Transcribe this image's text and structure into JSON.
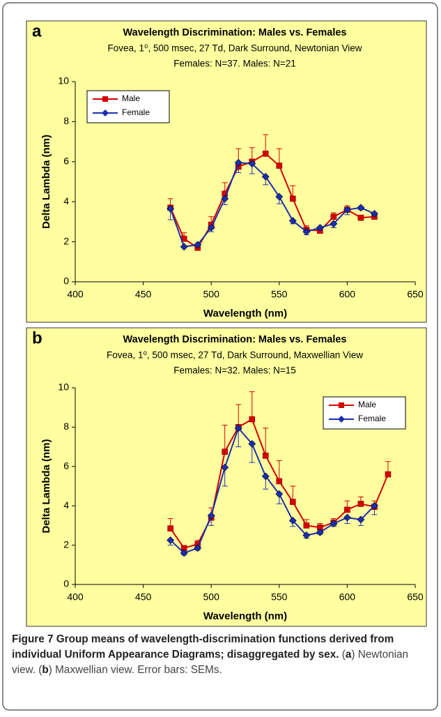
{
  "chart_data": [
    {
      "type": "line",
      "panel_label": "a",
      "title": "Wavelength Discrimination: Males vs. Females",
      "subtitle": "Fovea, 1⁰, 500 msec, 27 Td, Dark Surround, Newtonian View",
      "subtitle2": "Females: N=37. Males: N=21",
      "xlabel": "Wavelength (nm)",
      "ylabel": "Delta Lambda (nm)",
      "x": [
        470,
        480,
        490,
        500,
        510,
        520,
        530,
        540,
        550,
        560,
        570,
        580,
        590,
        600,
        610,
        620
      ],
      "series": [
        {
          "name": "Male",
          "color": "#d40000",
          "marker": "square",
          "error_direction": "up",
          "values": [
            3.7,
            2.15,
            1.7,
            2.85,
            4.4,
            5.75,
            6.0,
            6.4,
            5.8,
            4.15,
            2.6,
            2.55,
            3.25,
            3.6,
            3.2,
            3.25
          ],
          "errors": [
            0.45,
            0.3,
            0.1,
            0.4,
            0.55,
            0.9,
            0.7,
            0.95,
            0.85,
            0.65,
            0.2,
            0.15,
            0.2,
            0.2,
            0.1,
            0.1
          ]
        },
        {
          "name": "Female",
          "color": "#1a2fb0",
          "marker": "diamond",
          "error_direction": "down",
          "values": [
            3.65,
            1.75,
            1.85,
            2.7,
            4.15,
            5.95,
            5.9,
            5.25,
            4.25,
            3.05,
            2.5,
            2.7,
            2.9,
            3.6,
            3.7,
            3.4
          ],
          "errors": [
            0.55,
            0.05,
            0.1,
            0.2,
            0.3,
            0.5,
            0.5,
            0.4,
            0.35,
            0.15,
            0.15,
            0.1,
            0.2,
            0.25,
            0.1,
            0.1
          ]
        }
      ],
      "xlim": [
        400,
        650
      ],
      "xticks": [
        400,
        450,
        500,
        550,
        600,
        650
      ],
      "ylim": [
        0,
        10
      ],
      "yticks": [
        0,
        2,
        4,
        6,
        8,
        10
      ],
      "legend": "upper left"
    },
    {
      "type": "line",
      "panel_label": "b",
      "title": "Wavelength Discrimination: Males vs. Females",
      "subtitle": "Fovea, 1⁰, 500 msec, 27 Td, Dark Surround, Maxwellian View",
      "subtitle2": "Females: N=32. Males: N=15",
      "xlabel": "Wavelength (nm)",
      "ylabel": "Delta Lambda (nm)",
      "x": [
        470,
        480,
        490,
        500,
        510,
        520,
        530,
        540,
        550,
        560,
        570,
        580,
        590,
        600,
        610,
        620,
        630
      ],
      "series": [
        {
          "name": "Male",
          "color": "#d40000",
          "marker": "square",
          "error_direction": "up",
          "values": [
            2.85,
            1.85,
            2.05,
            3.4,
            6.75,
            8.0,
            8.4,
            6.55,
            5.25,
            4.2,
            3.0,
            2.9,
            3.15,
            3.8,
            4.1,
            3.95,
            5.6
          ],
          "errors": [
            0.5,
            0.1,
            0.2,
            0.5,
            1.35,
            1.15,
            1.4,
            1.4,
            1.05,
            0.8,
            0.3,
            0.2,
            0.2,
            0.45,
            0.35,
            0.3,
            0.65
          ]
        },
        {
          "name": "Female",
          "color": "#1a2fb0",
          "marker": "diamond",
          "error_direction": "down",
          "values": [
            2.25,
            1.6,
            1.85,
            3.5,
            5.95,
            7.95,
            7.15,
            5.5,
            4.6,
            3.25,
            2.5,
            2.65,
            3.1,
            3.4,
            3.3,
            4.0,
            null
          ],
          "errors": [
            0.25,
            0.1,
            0.1,
            0.5,
            0.95,
            0.95,
            0.95,
            0.65,
            0.5,
            0.3,
            0.15,
            0.1,
            0.15,
            0.3,
            0.3,
            0.45,
            null
          ]
        }
      ],
      "xlim": [
        400,
        650
      ],
      "xticks": [
        400,
        450,
        500,
        550,
        600,
        650
      ],
      "ylim": [
        0,
        10
      ],
      "yticks": [
        0,
        2,
        4,
        6,
        8,
        10
      ],
      "legend": "upper right"
    }
  ],
  "caption": {
    "label": "Figure 7",
    "title": "Group means of wavelength-discrimination functions derived from individual Uniform Appearance Diagrams; disaggregated by sex.",
    "segments": [
      "(",
      "a",
      ") Newtonian view. (",
      "b",
      ") Maxwellian view. Error bars: SEMs."
    ]
  }
}
